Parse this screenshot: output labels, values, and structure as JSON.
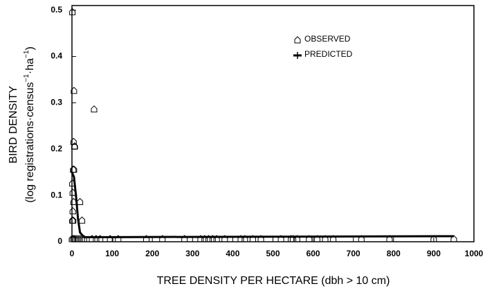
{
  "chart_data": {
    "type": "scatter",
    "x_label": "TREE DENSITY PER HECTARE (dbh > 10 cm)",
    "y_label": "BIRD DENSITY",
    "y_label_units": [
      "(log registrations·census",
      "−1",
      "·ha",
      "−1",
      ")"
    ],
    "xlim": [
      0,
      1000
    ],
    "xticks": [
      0,
      100,
      200,
      300,
      400,
      500,
      600,
      700,
      800,
      900,
      1000
    ],
    "ylim": [
      0,
      0.51
    ],
    "yticks": [
      0,
      0.1,
      0.2,
      0.3,
      0.4,
      0.5
    ],
    "series": [
      {
        "name": "OBSERVED",
        "color": "#000000",
        "x": [
          1,
          5,
          4,
          6,
          7,
          3,
          5,
          1,
          2,
          4,
          2,
          1,
          3,
          20,
          25,
          55,
          0,
          3,
          6,
          10,
          15,
          20,
          25,
          30,
          50,
          60,
          70,
          95,
          115,
          185,
          225,
          280,
          320,
          330,
          340,
          350,
          360,
          380,
          420,
          430,
          450,
          470,
          520,
          545,
          550,
          560,
          590,
          610,
          630,
          650,
          720,
          790,
          900,
          950
        ],
        "values": [
          0.49,
          0.32,
          0.21,
          0.2,
          0.2,
          0.15,
          0.15,
          0.12,
          0.1,
          0.08,
          0.06,
          0.04,
          0.04,
          0.08,
          0.04,
          0.28,
          0,
          0,
          0,
          0,
          0,
          0,
          0,
          0,
          0,
          0,
          0,
          0,
          0,
          0,
          0,
          0,
          0,
          0,
          0,
          0,
          0,
          0,
          0,
          0,
          0,
          0,
          0,
          0,
          0,
          0,
          0,
          0,
          0,
          0,
          0,
          0,
          0,
          0
        ]
      },
      {
        "name": "PREDICTED",
        "color": "#000000",
        "x": [
          0,
          5,
          10,
          15,
          20,
          30,
          100,
          950
        ],
        "values": [
          0.15,
          0.14,
          0.1,
          0.05,
          0.02,
          0.01,
          0.01,
          0.012
        ]
      }
    ]
  }
}
